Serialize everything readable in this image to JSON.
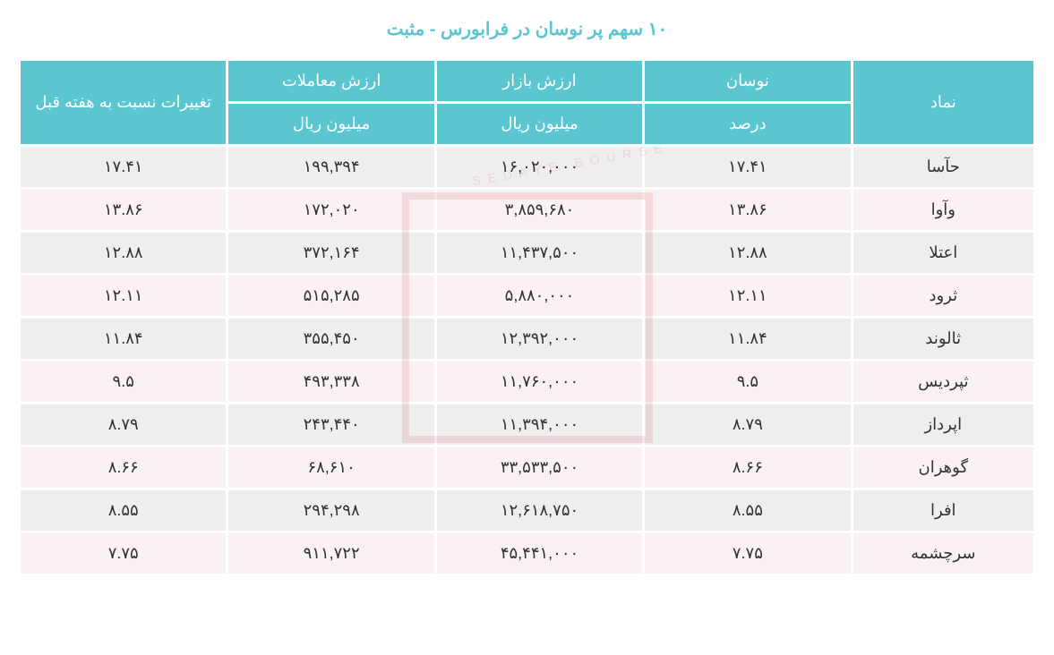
{
  "title": "۱۰ سهم پر نوسان در فرابورس - مثبت",
  "headers": {
    "symbol": "نماد",
    "volatility": "نوسان",
    "volatility_unit": "درصد",
    "market_value": "ارزش بازار",
    "market_value_unit": "میلیون ریال",
    "trade_value": "ارزش معاملات",
    "trade_value_unit": "میلیون ریال",
    "change": "تغییرات نسبت به هفته قبل"
  },
  "rows": [
    {
      "symbol": "حآسا",
      "volatility": "۱۷.۴۱",
      "market_value": "۱۶,۰۲۰,۰۰۰",
      "trade_value": "۱۹۹,۳۹۴",
      "change": "۱۷.۴۱"
    },
    {
      "symbol": "وآوا",
      "volatility": "۱۳.۸۶",
      "market_value": "۳,۸۵۹,۶۸۰",
      "trade_value": "۱۷۲,۰۲۰",
      "change": "۱۳.۸۶"
    },
    {
      "symbol": "اعتلا",
      "volatility": "۱۲.۸۸",
      "market_value": "۱۱,۴۳۷,۵۰۰",
      "trade_value": "۳۷۲,۱۶۴",
      "change": "۱۲.۸۸"
    },
    {
      "symbol": "ثرود",
      "volatility": "۱۲.۱۱",
      "market_value": "۵,۸۸۰,۰۰۰",
      "trade_value": "۵۱۵,۲۸۵",
      "change": "۱۲.۱۱"
    },
    {
      "symbol": "ثالوند",
      "volatility": "۱۱.۸۴",
      "market_value": "۱۲,۳۹۲,۰۰۰",
      "trade_value": "۳۵۵,۴۵۰",
      "change": "۱۱.۸۴"
    },
    {
      "symbol": "ثپردیس",
      "volatility": "۹.۵",
      "market_value": "۱۱,۷۶۰,۰۰۰",
      "trade_value": "۴۹۳,۳۳۸",
      "change": "۹.۵"
    },
    {
      "symbol": "اپرداز",
      "volatility": "۸.۷۹",
      "market_value": "۱۱,۳۹۴,۰۰۰",
      "trade_value": "۲۴۳,۴۴۰",
      "change": "۸.۷۹"
    },
    {
      "symbol": "گوهران",
      "volatility": "۸.۶۶",
      "market_value": "۳۳,۵۳۳,۵۰۰",
      "trade_value": "۶۸,۶۱۰",
      "change": "۸.۶۶"
    },
    {
      "symbol": "افرا",
      "volatility": "۸.۵۵",
      "market_value": "۱۲,۶۱۸,۷۵۰",
      "trade_value": "۲۹۴,۲۹۸",
      "change": "۸.۵۵"
    },
    {
      "symbol": "سرچشمه",
      "volatility": "۷.۷۵",
      "market_value": "۴۵,۴۴۱,۰۰۰",
      "trade_value": "۹۱۱,۷۲۲",
      "change": "۷.۷۵"
    }
  ],
  "watermark_text": "SEDAYE BOURSE",
  "colors": {
    "title_color": "#5bc5d0",
    "header_bg": "#5bc5d0",
    "header_text": "#ffffff",
    "row_odd_bg": "#eeeeee",
    "row_even_bg": "#f9f1f3",
    "cell_text": "#333333",
    "watermark_color": "#d9534f"
  },
  "layout": {
    "font_size_title": 20,
    "font_size_header": 18,
    "font_size_cell": 18,
    "cell_padding": 12,
    "border_spacing": 3
  }
}
